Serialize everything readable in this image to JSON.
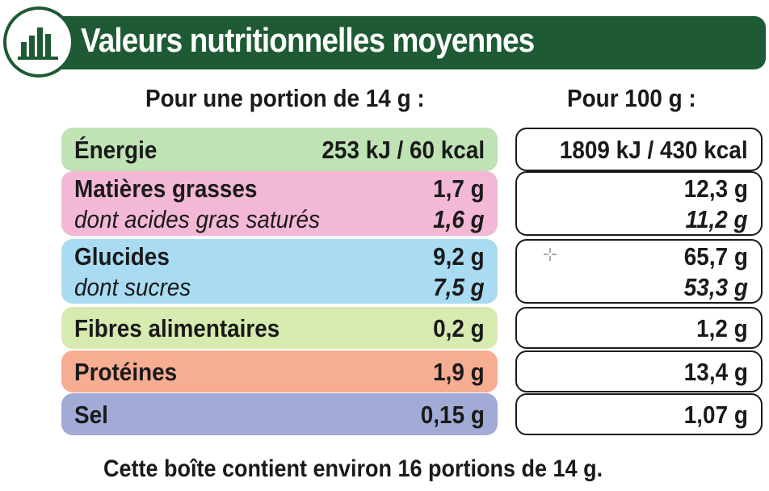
{
  "title": "Valeurs nutritionnelles moyennes",
  "icon": "bar-chart-icon",
  "colors": {
    "brand_green": "#1e5a34",
    "energie": "#bfe3b4",
    "matieres": "#f3b8d5",
    "glucides": "#a9dcf2",
    "fibres": "#d7ebb0",
    "proteines": "#f6ad92",
    "sel": "#a2abd6"
  },
  "headers": {
    "portion": "Pour une portion de 14 g :",
    "per100": "Pour 100 g :"
  },
  "rows": {
    "energie": {
      "label": "Énergie",
      "portion": "253 kJ / 60 kcal",
      "per100": "1809 kJ / 430 kcal"
    },
    "matieres": {
      "label": "Matières grasses",
      "portion": "1,7 g",
      "per100": "12,3 g",
      "sub_label": "dont acides gras saturés",
      "sub_portion": "1,6 g",
      "sub_per100": "11,2 g"
    },
    "glucides": {
      "label": "Glucides",
      "portion": "9,2 g",
      "per100": "65,7 g",
      "sub_label": "dont sucres",
      "sub_portion": "7,5 g",
      "sub_per100": "53,3 g"
    },
    "fibres": {
      "label": "Fibres alimentaires",
      "portion": "0,2 g",
      "per100": "1,2 g"
    },
    "proteines": {
      "label": "Protéines",
      "portion": "1,9 g",
      "per100": "13,4 g"
    },
    "sel": {
      "label": "Sel",
      "portion": "0,15 g",
      "per100": "1,07 g"
    }
  },
  "footer": "Cette boîte contient environ 16 portions de 14 g."
}
